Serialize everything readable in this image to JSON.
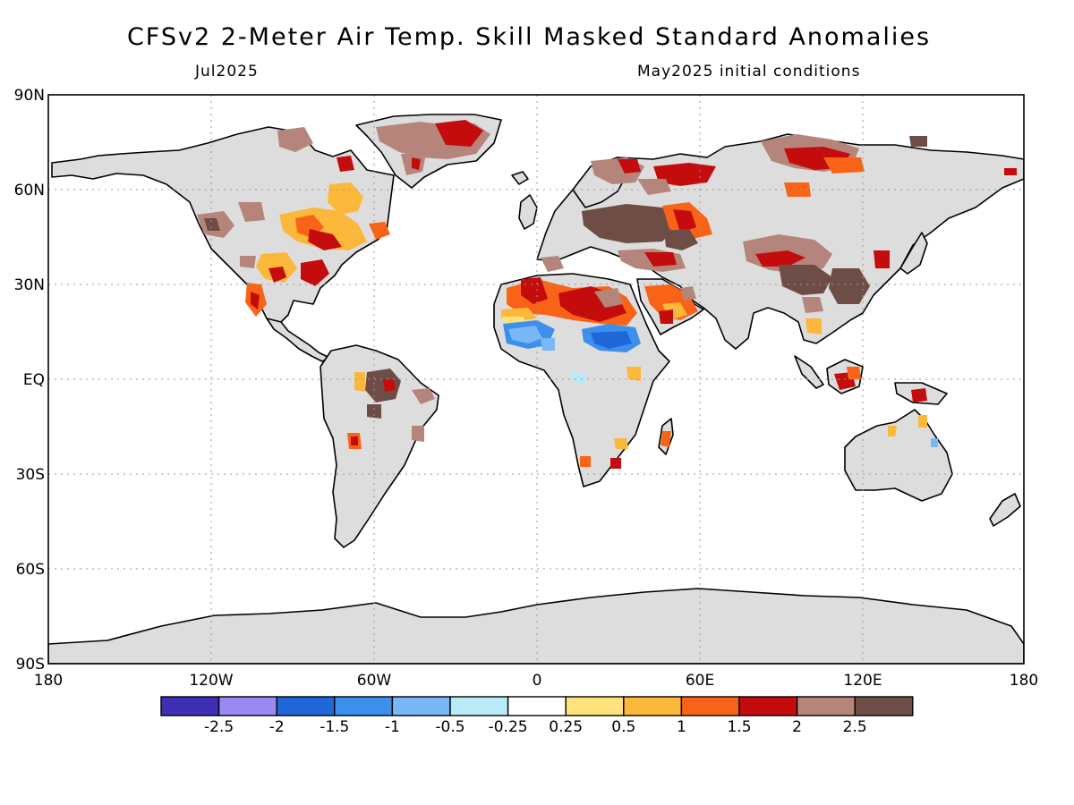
{
  "header": {
    "title": "CFSv2 2-Meter Air Temp. Skill Masked Standard Anomalies",
    "valid_month": "Jul2025",
    "initial_conditions": "May2025 initial conditions"
  },
  "axes": {
    "lat_labels": [
      "90N",
      "60N",
      "30N",
      "EQ",
      "30S",
      "60S",
      "90S"
    ],
    "lon_labels": [
      "180",
      "120W",
      "60W",
      "0",
      "60E",
      "120E",
      "180"
    ]
  },
  "legend": {
    "colors": [
      "#3f2fb4",
      "#9b88f2",
      "#1f66d8",
      "#3d8fec",
      "#79b7f6",
      "#b8eaf7",
      "#ffffff",
      "#ffe27a",
      "#fbb83b",
      "#f96317",
      "#c40c0c",
      "#b5857b",
      "#6e4d46"
    ],
    "labels": [
      "-2.5",
      "-2",
      "-1.5",
      "-1",
      "-0.5",
      "-0.25",
      "0.25",
      "0.5",
      "1",
      "1.5",
      "2",
      "2.5"
    ]
  },
  "colors": {
    "land_masked": "#dddddd",
    "ocean": "#ffffff",
    "coastline": "#000000",
    "grid": "#999999"
  }
}
